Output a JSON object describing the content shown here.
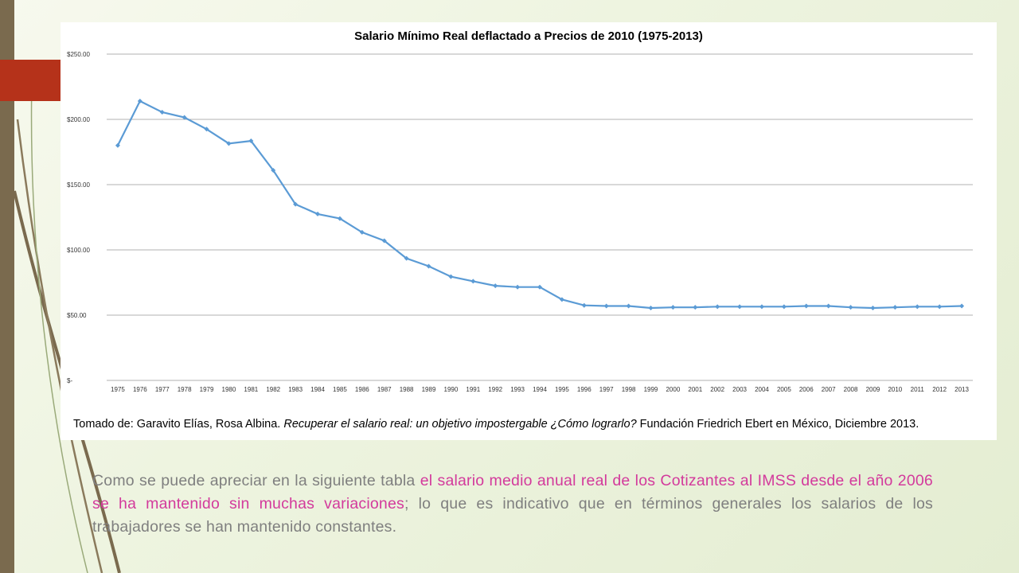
{
  "colors": {
    "line": "#5b9bd5",
    "highlight": "#d33a9c",
    "accent": "#b5321a",
    "bar": "#7a6a4e"
  },
  "source": {
    "prefix": "Tomado de: Garavito Elías, Rosa Albina. ",
    "title_italic": "Recuperar el salario real: un objetivo impostergable ¿Cómo lograrlo?",
    "suffix": " Fundación Friedrich Ebert en México, Diciembre 2013."
  },
  "caption": {
    "part1": "Como se puede apreciar en la siguiente tabla ",
    "highlight": "el salario medio anual real de los Cotizantes al IMSS desde el año 2006 se ha mantenido sin muchas variaciones",
    "part2": "; lo que es indicativo que en términos generales los salarios de los trabajadores se han mantenido constantes."
  },
  "chart_data": {
    "type": "line",
    "title": "Salario Mínimo Real deflactado a Precios de 2010 (1975-2013)",
    "xlabel": "",
    "ylabel": "",
    "ylim": [
      0,
      250
    ],
    "grid": true,
    "y_ticks": [
      {
        "value": 0,
        "label": "$-"
      },
      {
        "value": 50,
        "label": "$50.00"
      },
      {
        "value": 100,
        "label": "$100.00"
      },
      {
        "value": 150,
        "label": "$150.00"
      },
      {
        "value": 200,
        "label": "$200.00"
      },
      {
        "value": 250,
        "label": "$250.00"
      }
    ],
    "categories": [
      "1975",
      "1976",
      "1977",
      "1978",
      "1979",
      "1980",
      "1981",
      "1982",
      "1983",
      "1984",
      "1985",
      "1986",
      "1987",
      "1988",
      "1989",
      "1990",
      "1991",
      "1992",
      "1993",
      "1994",
      "1995",
      "1996",
      "1997",
      "1998",
      "1999",
      "2000",
      "2001",
      "2002",
      "2003",
      "2004",
      "2005",
      "2006",
      "2007",
      "2008",
      "2009",
      "2010",
      "2011",
      "2012",
      "2013"
    ],
    "series": [
      {
        "values": [
          180,
          214,
          205.5,
          201.5,
          192.5,
          181.5,
          183.5,
          161,
          135,
          127.5,
          124,
          113.5,
          107,
          93.5,
          87.5,
          79.5,
          76,
          72.5,
          71.5,
          71.5,
          62,
          57.5,
          57,
          57,
          55.5,
          56,
          56,
          56.5,
          56.5,
          56.5,
          56.5,
          57,
          57,
          56,
          55.5,
          56,
          56.5,
          56.5,
          57
        ]
      }
    ]
  }
}
